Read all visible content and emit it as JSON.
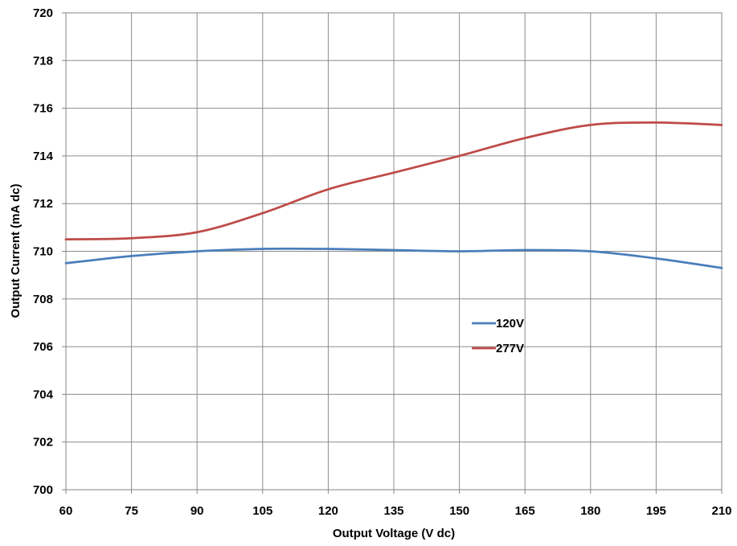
{
  "chart_data": {
    "type": "line",
    "title": "",
    "xlabel": "Output Voltage (V dc)",
    "ylabel": "Output Current (mA dc)",
    "xlim": [
      60,
      210
    ],
    "ylim": [
      700,
      720
    ],
    "x_ticks": [
      "60",
      "75",
      "90",
      "105",
      "120",
      "135",
      "150",
      "165",
      "180",
      "195",
      "210"
    ],
    "y_ticks": [
      "700",
      "702",
      "704",
      "706",
      "708",
      "710",
      "712",
      "714",
      "716",
      "718",
      "720"
    ],
    "grid": true,
    "legend_position": "center-right",
    "x": [
      60,
      75,
      90,
      105,
      120,
      135,
      150,
      165,
      180,
      195,
      210
    ],
    "series": [
      {
        "name": "120V",
        "color": "#4a7ebb",
        "values": [
          709.5,
          709.8,
          710.0,
          710.1,
          710.1,
          710.05,
          710.0,
          710.05,
          710.0,
          709.7,
          709.3
        ]
      },
      {
        "name": "277V",
        "color": "#be4b48",
        "values": [
          710.5,
          710.55,
          710.8,
          711.6,
          712.6,
          713.3,
          714.0,
          714.75,
          715.3,
          715.4,
          715.3
        ]
      }
    ]
  }
}
